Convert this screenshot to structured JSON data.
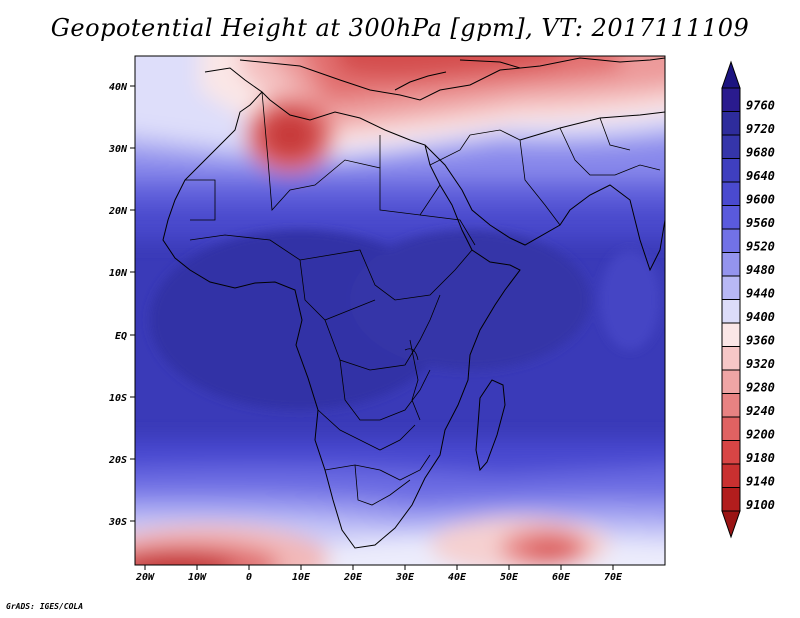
{
  "title": "Geopotential Height at 300hPa [gpm], VT: 2017111109",
  "credit": "GrADS: IGES/COLA",
  "map": {
    "lat_labels": [
      "40N",
      "30N",
      "20N",
      "10N",
      "EQ",
      "10S",
      "20S",
      "30S"
    ],
    "lon_labels": [
      "20W",
      "10W",
      "0",
      "10E",
      "20E",
      "30E",
      "40E",
      "50E",
      "60E",
      "70E"
    ]
  },
  "colorbar": {
    "levels": [
      "9760",
      "9720",
      "9680",
      "9640",
      "9600",
      "9560",
      "9520",
      "9480",
      "9440",
      "9400",
      "9360",
      "9320",
      "9280",
      "9240",
      "9200",
      "9180",
      "9140",
      "9100"
    ],
    "colors": [
      "#2a1b8e",
      "#2e2c9c",
      "#3535aa",
      "#3f3fbf",
      "#4a4ad0",
      "#5a5add",
      "#7272e6",
      "#9494ee",
      "#b8b8f5",
      "#dcdcf9",
      "#fbe7e7",
      "#f6c7c7",
      "#efa5a5",
      "#e88282",
      "#e06262",
      "#d84545",
      "#c93030",
      "#b21d1d"
    ],
    "top_arrow_color": "#1c1480",
    "bottom_arrow_color": "#9a1414"
  }
}
